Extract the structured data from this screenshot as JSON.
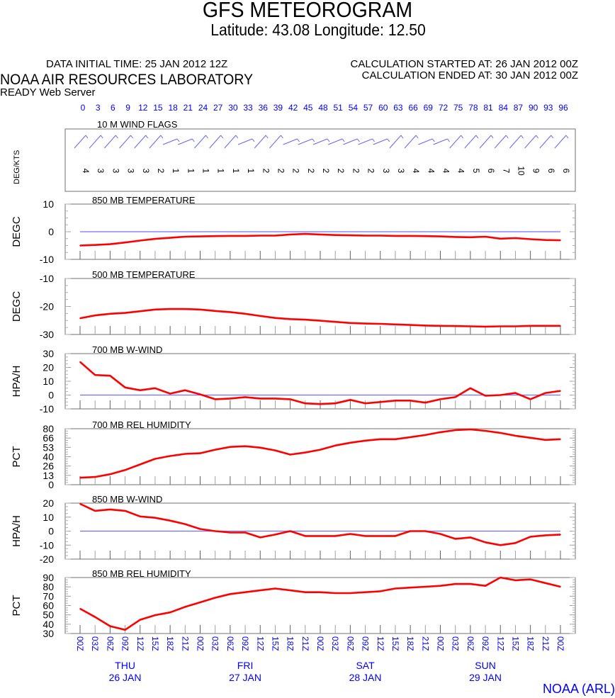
{
  "header": {
    "title": "GFS METEOROGRAM",
    "subtitle": "Latitude: 43.08 Longitude:  12.50",
    "data_initial_time": "DATA INITIAL TIME: 25 JAN 2012 12Z",
    "calc_started": "CALCULATION STARTED AT: 26 JAN 2012 00Z",
    "calc_ended": "CALCULATION ENDED AT: 30 JAN 2012 00Z",
    "organization": "NOAA AIR RESOURCES LABORATORY",
    "server": "READY Web Server",
    "credit": "NOAA (ARL)"
  },
  "colors": {
    "series": "#ff0000",
    "zero_line": "#7070ff",
    "wind_flag": "#6464ff",
    "axis_label": "#0000ff",
    "frame": "#707070"
  },
  "chart_data": [
    {
      "type": "wind_flags",
      "title": "10 M  WIND FLAGS",
      "ylabel": "DEG/KTS",
      "forecast_hours": [
        0,
        3,
        6,
        9,
        12,
        15,
        18,
        21,
        24,
        27,
        30,
        33,
        36,
        39,
        42,
        45,
        48,
        51,
        54,
        57,
        60,
        63,
        66,
        69,
        72,
        75,
        78,
        81,
        84,
        87,
        90,
        93,
        96
      ],
      "speeds_kts": [
        4,
        3,
        3,
        3,
        3,
        2,
        1,
        1,
        1,
        1,
        1,
        1,
        2,
        2,
        2,
        2,
        2,
        2,
        2,
        2,
        3,
        3,
        4,
        4,
        4,
        4,
        5,
        6,
        7,
        10,
        9,
        6,
        6
      ],
      "flag_directions": [
        "NE",
        "NE",
        "NE",
        "NE",
        "NE",
        "NE",
        "ENE",
        "ENE",
        "NE",
        "NE",
        "NE",
        "ENE",
        "NE",
        "NE",
        "ENE",
        "ENE",
        "ENE",
        "ENE",
        "ENE",
        "ENE",
        "ENE",
        "NE",
        "NE",
        "ENE",
        "ENE",
        "NE",
        "NE",
        "NE",
        "NE",
        "NE",
        "NE",
        "NE",
        "NE"
      ]
    },
    {
      "type": "line",
      "title": "850 MB  TEMPERATURE",
      "ylabel": "DEGC",
      "ylim": [
        -10,
        10
      ],
      "yticks": [
        "10",
        "0",
        "-10"
      ],
      "zero_line": true,
      "values": [
        -5.0,
        -4.8,
        -4.5,
        -3.9,
        -3.2,
        -2.6,
        -2.2,
        -1.8,
        -1.7,
        -1.6,
        -1.5,
        -1.5,
        -1.4,
        -1.4,
        -1.0,
        -0.8,
        -1.0,
        -1.2,
        -1.3,
        -1.4,
        -1.4,
        -1.5,
        -1.5,
        -1.6,
        -1.7,
        -1.9,
        -2.0,
        -1.8,
        -2.5,
        -2.3,
        -2.7,
        -3.0,
        -3.1
      ]
    },
    {
      "type": "line",
      "title": "500 MB  TEMPERATURE",
      "ylabel": "DEGC",
      "ylim": [
        -30,
        -10
      ],
      "yticks": [
        "-10",
        "-20",
        "-30"
      ],
      "zero_line": false,
      "values": [
        -24.2,
        -23.2,
        -22.6,
        -22.3,
        -21.7,
        -21.1,
        -20.9,
        -20.9,
        -21.1,
        -21.6,
        -22.0,
        -22.6,
        -23.4,
        -24.1,
        -24.5,
        -24.7,
        -25.1,
        -25.5,
        -25.9,
        -26.1,
        -26.2,
        -26.4,
        -26.6,
        -26.8,
        -26.9,
        -27.0,
        -27.1,
        -27.2,
        -27.1,
        -27.1,
        -26.9,
        -26.9,
        -26.9
      ]
    },
    {
      "type": "line",
      "title": "700 MB  W-WIND",
      "ylabel": "HPA/H",
      "ylim": [
        -10,
        30
      ],
      "yticks": [
        "30",
        "20",
        "10",
        "0",
        "-10"
      ],
      "zero_line": true,
      "values": [
        24,
        14.5,
        14,
        5.5,
        3.5,
        5,
        1,
        3.5,
        0.5,
        -3,
        -2.5,
        -1.5,
        -2.5,
        -2.5,
        -3,
        -6,
        -6.5,
        -6,
        -3.5,
        -6,
        -5,
        -4,
        -4,
        -5.5,
        -3,
        -1.5,
        5,
        -0.5,
        0,
        1.5,
        -3,
        1.5,
        3
      ]
    },
    {
      "type": "line",
      "title": "700 MB  REL HUMIDITY",
      "ylabel": "PCT",
      "ylim": [
        0,
        80
      ],
      "yticks": [
        "80",
        "66",
        "53",
        "40",
        "26",
        "13",
        "0"
      ],
      "zero_line": false,
      "values": [
        10,
        11,
        15,
        21,
        29,
        37,
        41,
        44,
        45,
        50,
        54,
        55,
        53,
        49,
        43,
        46,
        50,
        56,
        60,
        63,
        65,
        65,
        68,
        71,
        75,
        78,
        79,
        77,
        74,
        70,
        67,
        64,
        65
      ]
    },
    {
      "type": "line",
      "title": "850 MB  W-WIND",
      "ylabel": "HPA/H",
      "ylim": [
        -20,
        20
      ],
      "yticks": [
        "20",
        "10",
        "0",
        "-10",
        "-20"
      ],
      "zero_line": true,
      "values": [
        19.5,
        14.5,
        15.5,
        14.5,
        10.5,
        9.5,
        7.5,
        5,
        1.5,
        0,
        -1,
        -1,
        -4.5,
        -2.5,
        0,
        -3.5,
        -3.5,
        -3.5,
        -2,
        -3.5,
        -3.5,
        -3.5,
        0,
        0,
        -2,
        -5.5,
        -4.5,
        -8,
        -10,
        -8.5,
        -4,
        -3,
        -2.5
      ]
    },
    {
      "type": "line",
      "title": "850 MB  REL HUMIDITY",
      "ylabel": "PCT",
      "ylim": [
        30,
        91
      ],
      "yticks": [
        "90",
        "80",
        "70",
        "60",
        "50",
        "40",
        "30"
      ],
      "zero_line": false,
      "values": [
        57,
        48,
        38,
        34,
        45,
        50,
        53,
        59,
        64,
        69,
        73,
        75,
        77,
        79,
        77,
        75,
        75,
        74,
        74,
        75,
        76,
        79,
        80,
        81,
        82,
        84,
        84,
        82,
        91,
        88,
        89,
        85,
        81
      ]
    }
  ],
  "time_axis": {
    "hour_labels": [
      "0",
      "3",
      "6",
      "9",
      "12",
      "15",
      "18",
      "21",
      "24",
      "27",
      "30",
      "33",
      "36",
      "39",
      "42",
      "45",
      "48",
      "51",
      "54",
      "57",
      "60",
      "63",
      "66",
      "69",
      "72",
      "75",
      "78",
      "81",
      "84",
      "87",
      "90",
      "93",
      "96"
    ],
    "utc_labels": [
      "00Z",
      "03Z",
      "06Z",
      "09Z",
      "12Z",
      "15Z",
      "18Z",
      "21Z",
      "00Z",
      "03Z",
      "06Z",
      "09Z",
      "12Z",
      "15Z",
      "18Z",
      "21Z",
      "00Z",
      "03Z",
      "06Z",
      "09Z",
      "12Z",
      "15Z",
      "18Z",
      "21Z",
      "00Z",
      "03Z",
      "06Z",
      "09Z",
      "12Z",
      "15Z",
      "18Z",
      "21Z",
      "00Z"
    ],
    "days": [
      {
        "weekday": "THU",
        "date": "26 JAN"
      },
      {
        "weekday": "FRI",
        "date": "27 JAN"
      },
      {
        "weekday": "SAT",
        "date": "28 JAN"
      },
      {
        "weekday": "SUN",
        "date": "29 JAN"
      }
    ]
  }
}
